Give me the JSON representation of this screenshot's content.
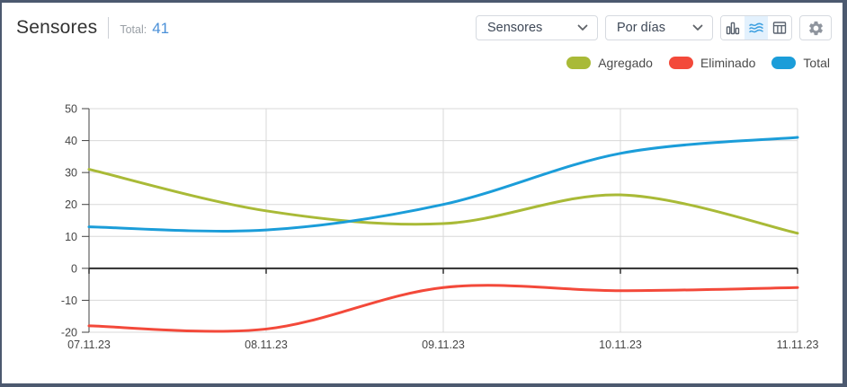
{
  "header": {
    "title": "Sensores",
    "total_label": "Total:",
    "total_value": "41"
  },
  "toolbar": {
    "select_metric": {
      "value": "Sensores"
    },
    "select_period": {
      "value": "Por días"
    },
    "view_buttons": [
      {
        "name": "bar-chart",
        "active": false
      },
      {
        "name": "line-chart",
        "active": true
      },
      {
        "name": "table",
        "active": false
      }
    ]
  },
  "legend": [
    {
      "label": "Agregado",
      "color": "#a9ba37"
    },
    {
      "label": "Eliminado",
      "color": "#f3493a"
    },
    {
      "label": "Total",
      "color": "#1b9dd9"
    }
  ],
  "colors": {
    "accent_blue": "#4a90d8",
    "active_icon_blue": "#3b9fe0",
    "active_icon_bg": "#e3f1fd",
    "grid": "#d8d8d8",
    "axis": "#424242",
    "zero_line": "#2e2e2e",
    "tick_label": "#454545"
  },
  "chart_data": {
    "type": "line",
    "curve": "spline",
    "title": "",
    "xlabel": "",
    "ylabel": "",
    "x": [
      "07.11.23",
      "08.11.23",
      "09.11.23",
      "10.11.23",
      "11.11.23"
    ],
    "series": [
      {
        "name": "Agregado",
        "color": "#a9ba37",
        "values": [
          31,
          18,
          14,
          23,
          11
        ]
      },
      {
        "name": "Eliminado",
        "color": "#f3493a",
        "values": [
          -18,
          -19,
          -6,
          -7,
          -6
        ]
      },
      {
        "name": "Total",
        "color": "#1b9dd9",
        "values": [
          13,
          12,
          20,
          36,
          41
        ]
      }
    ],
    "ylim": [
      -20,
      50
    ],
    "yticks": [
      50,
      40,
      30,
      20,
      10,
      0,
      -10,
      -20
    ],
    "grid": true,
    "zero_axis_highlighted": true,
    "legend_position": "top-right"
  }
}
